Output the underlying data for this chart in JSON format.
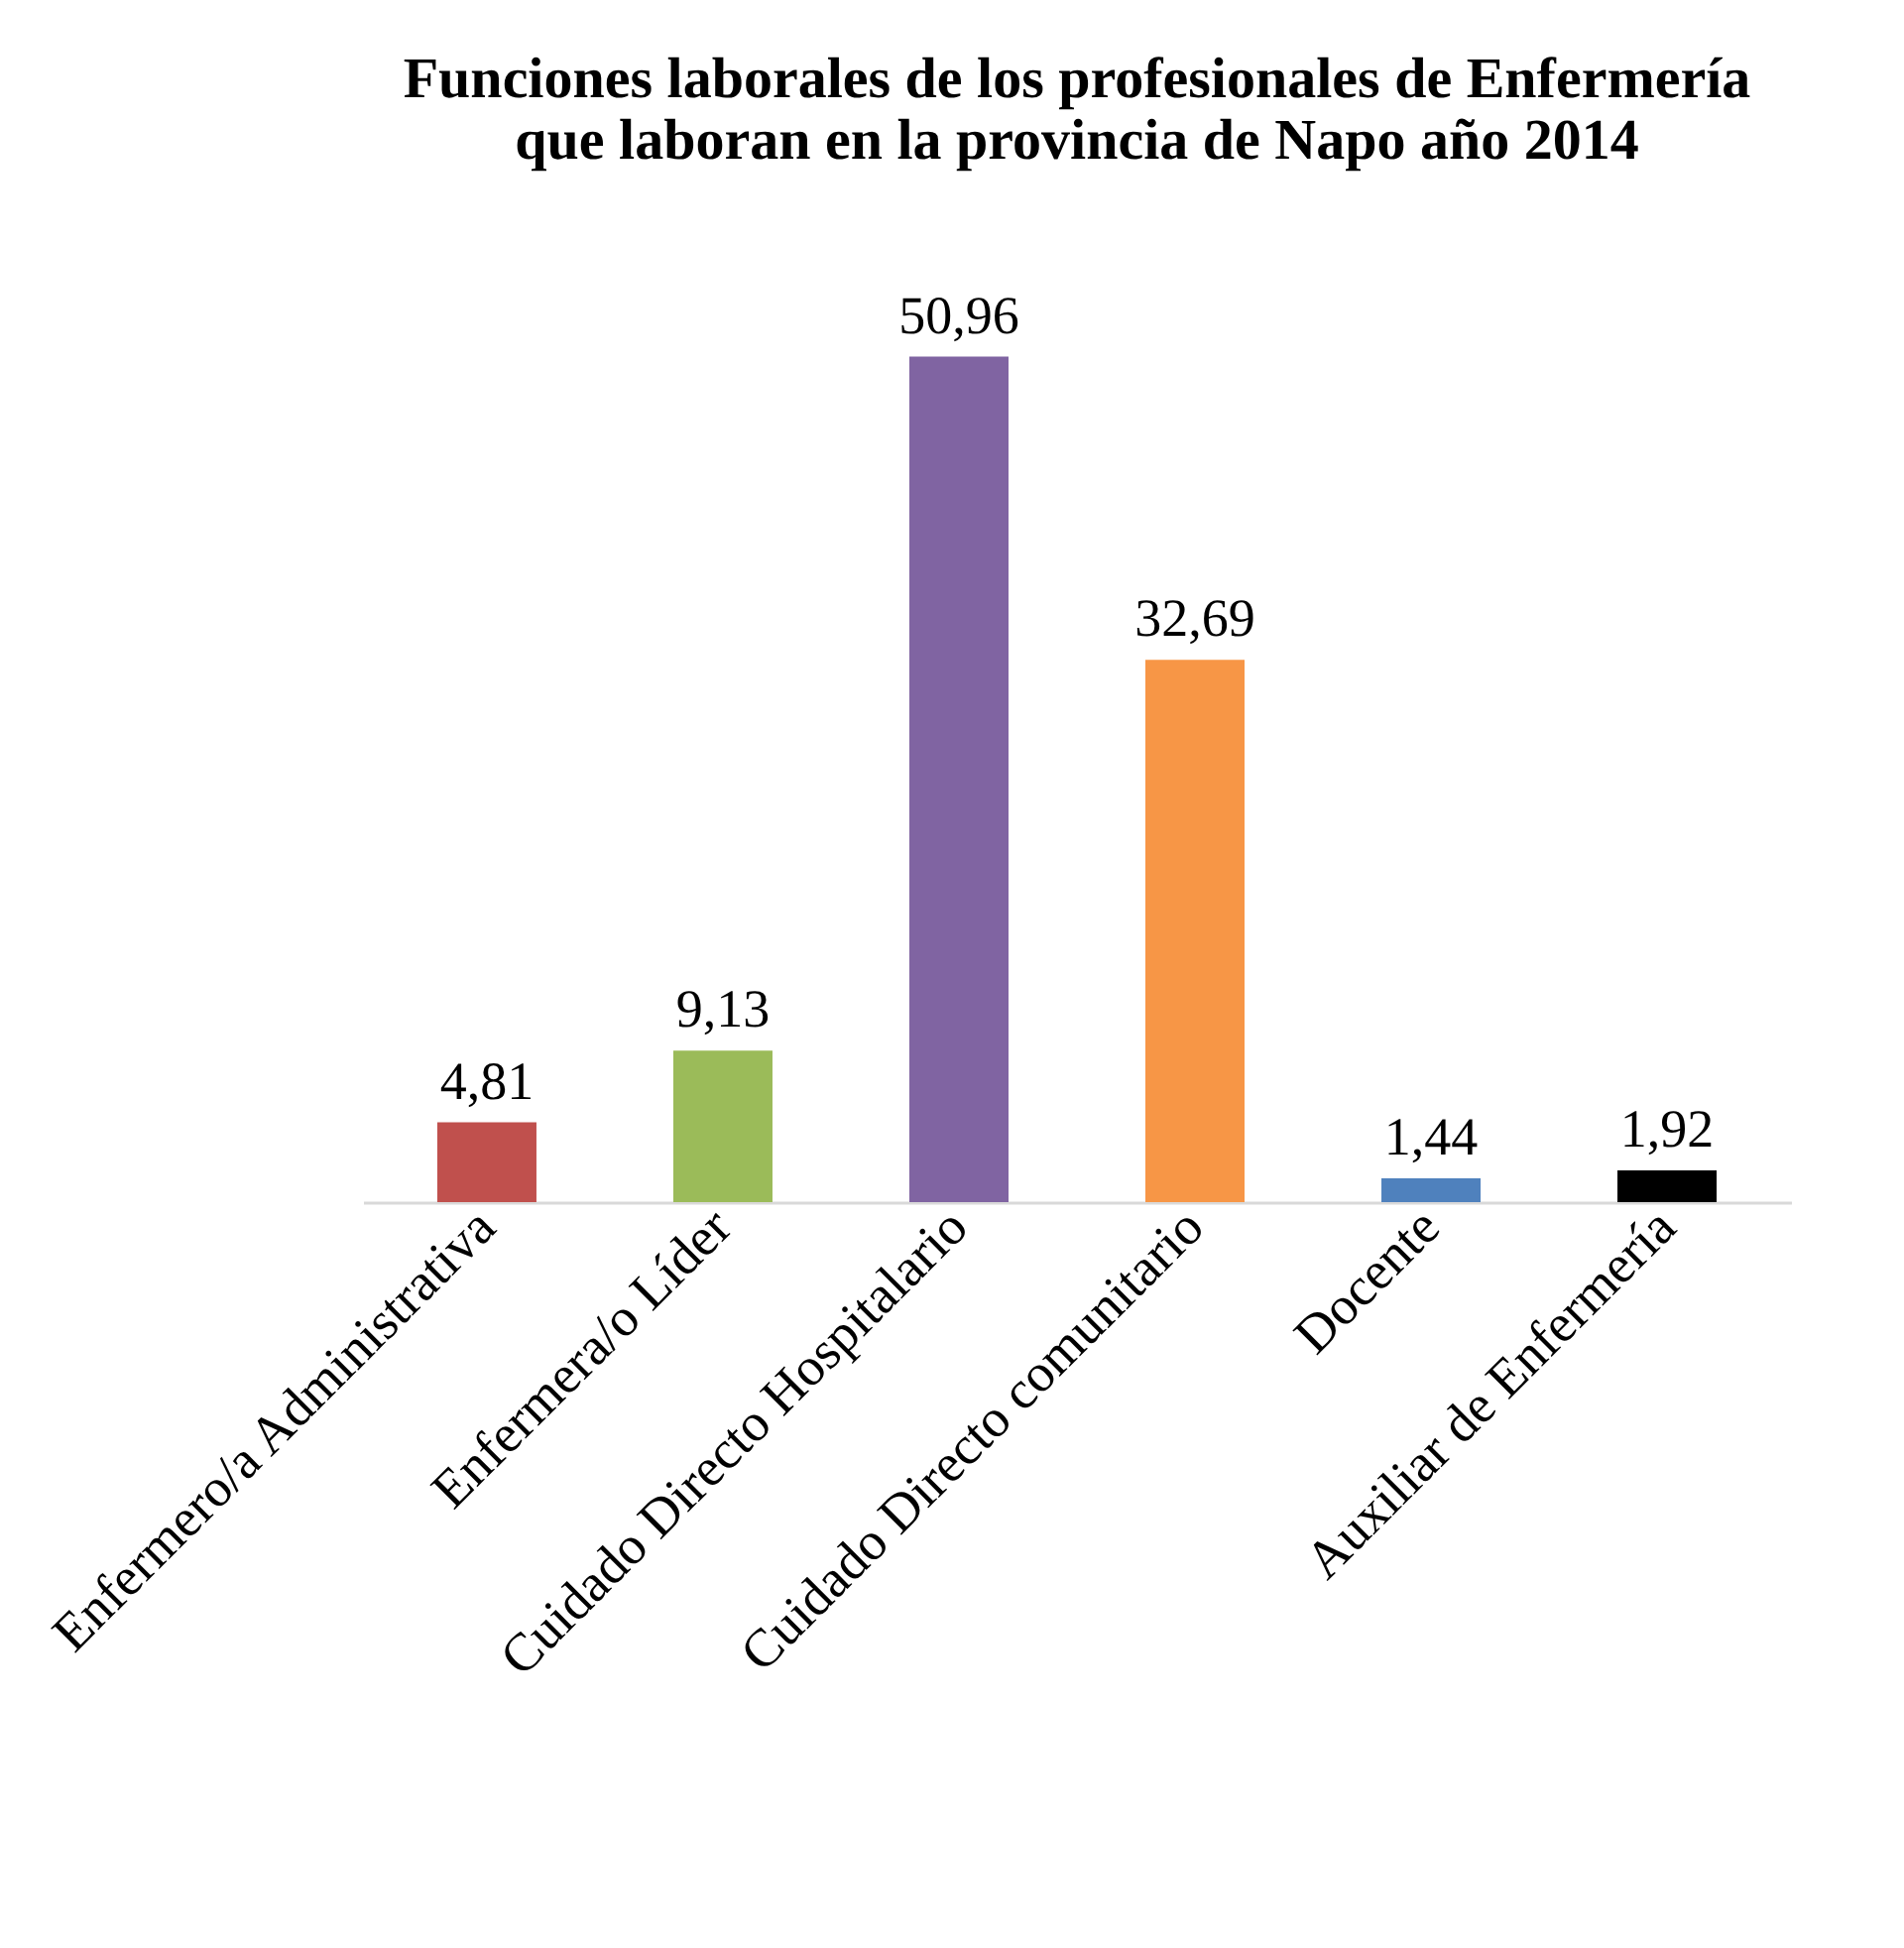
{
  "chart_data": {
    "type": "bar",
    "title": "Funciones laborales de los profesionales de Enfermería\nque laboran en la provincia de Napo año 2014",
    "categories": [
      "Enfermero/a Administrativa",
      "Enfermera/o Líder",
      "Cuidado Directo Hospitalario",
      "Cuidado Directo comunitario",
      "Docente",
      "Auxiliar de Enfermería"
    ],
    "values": [
      4.81,
      9.13,
      50.96,
      32.69,
      1.44,
      1.92
    ],
    "value_labels": [
      "4,81",
      "9,13",
      "50,96",
      "32,69",
      "1,44",
      "1,92"
    ],
    "colors": [
      "#c0504d",
      "#9bbb59",
      "#8064a2",
      "#f79646",
      "#4f81bd",
      "#000000"
    ],
    "tick_labels": "x",
    "grid": false
  }
}
